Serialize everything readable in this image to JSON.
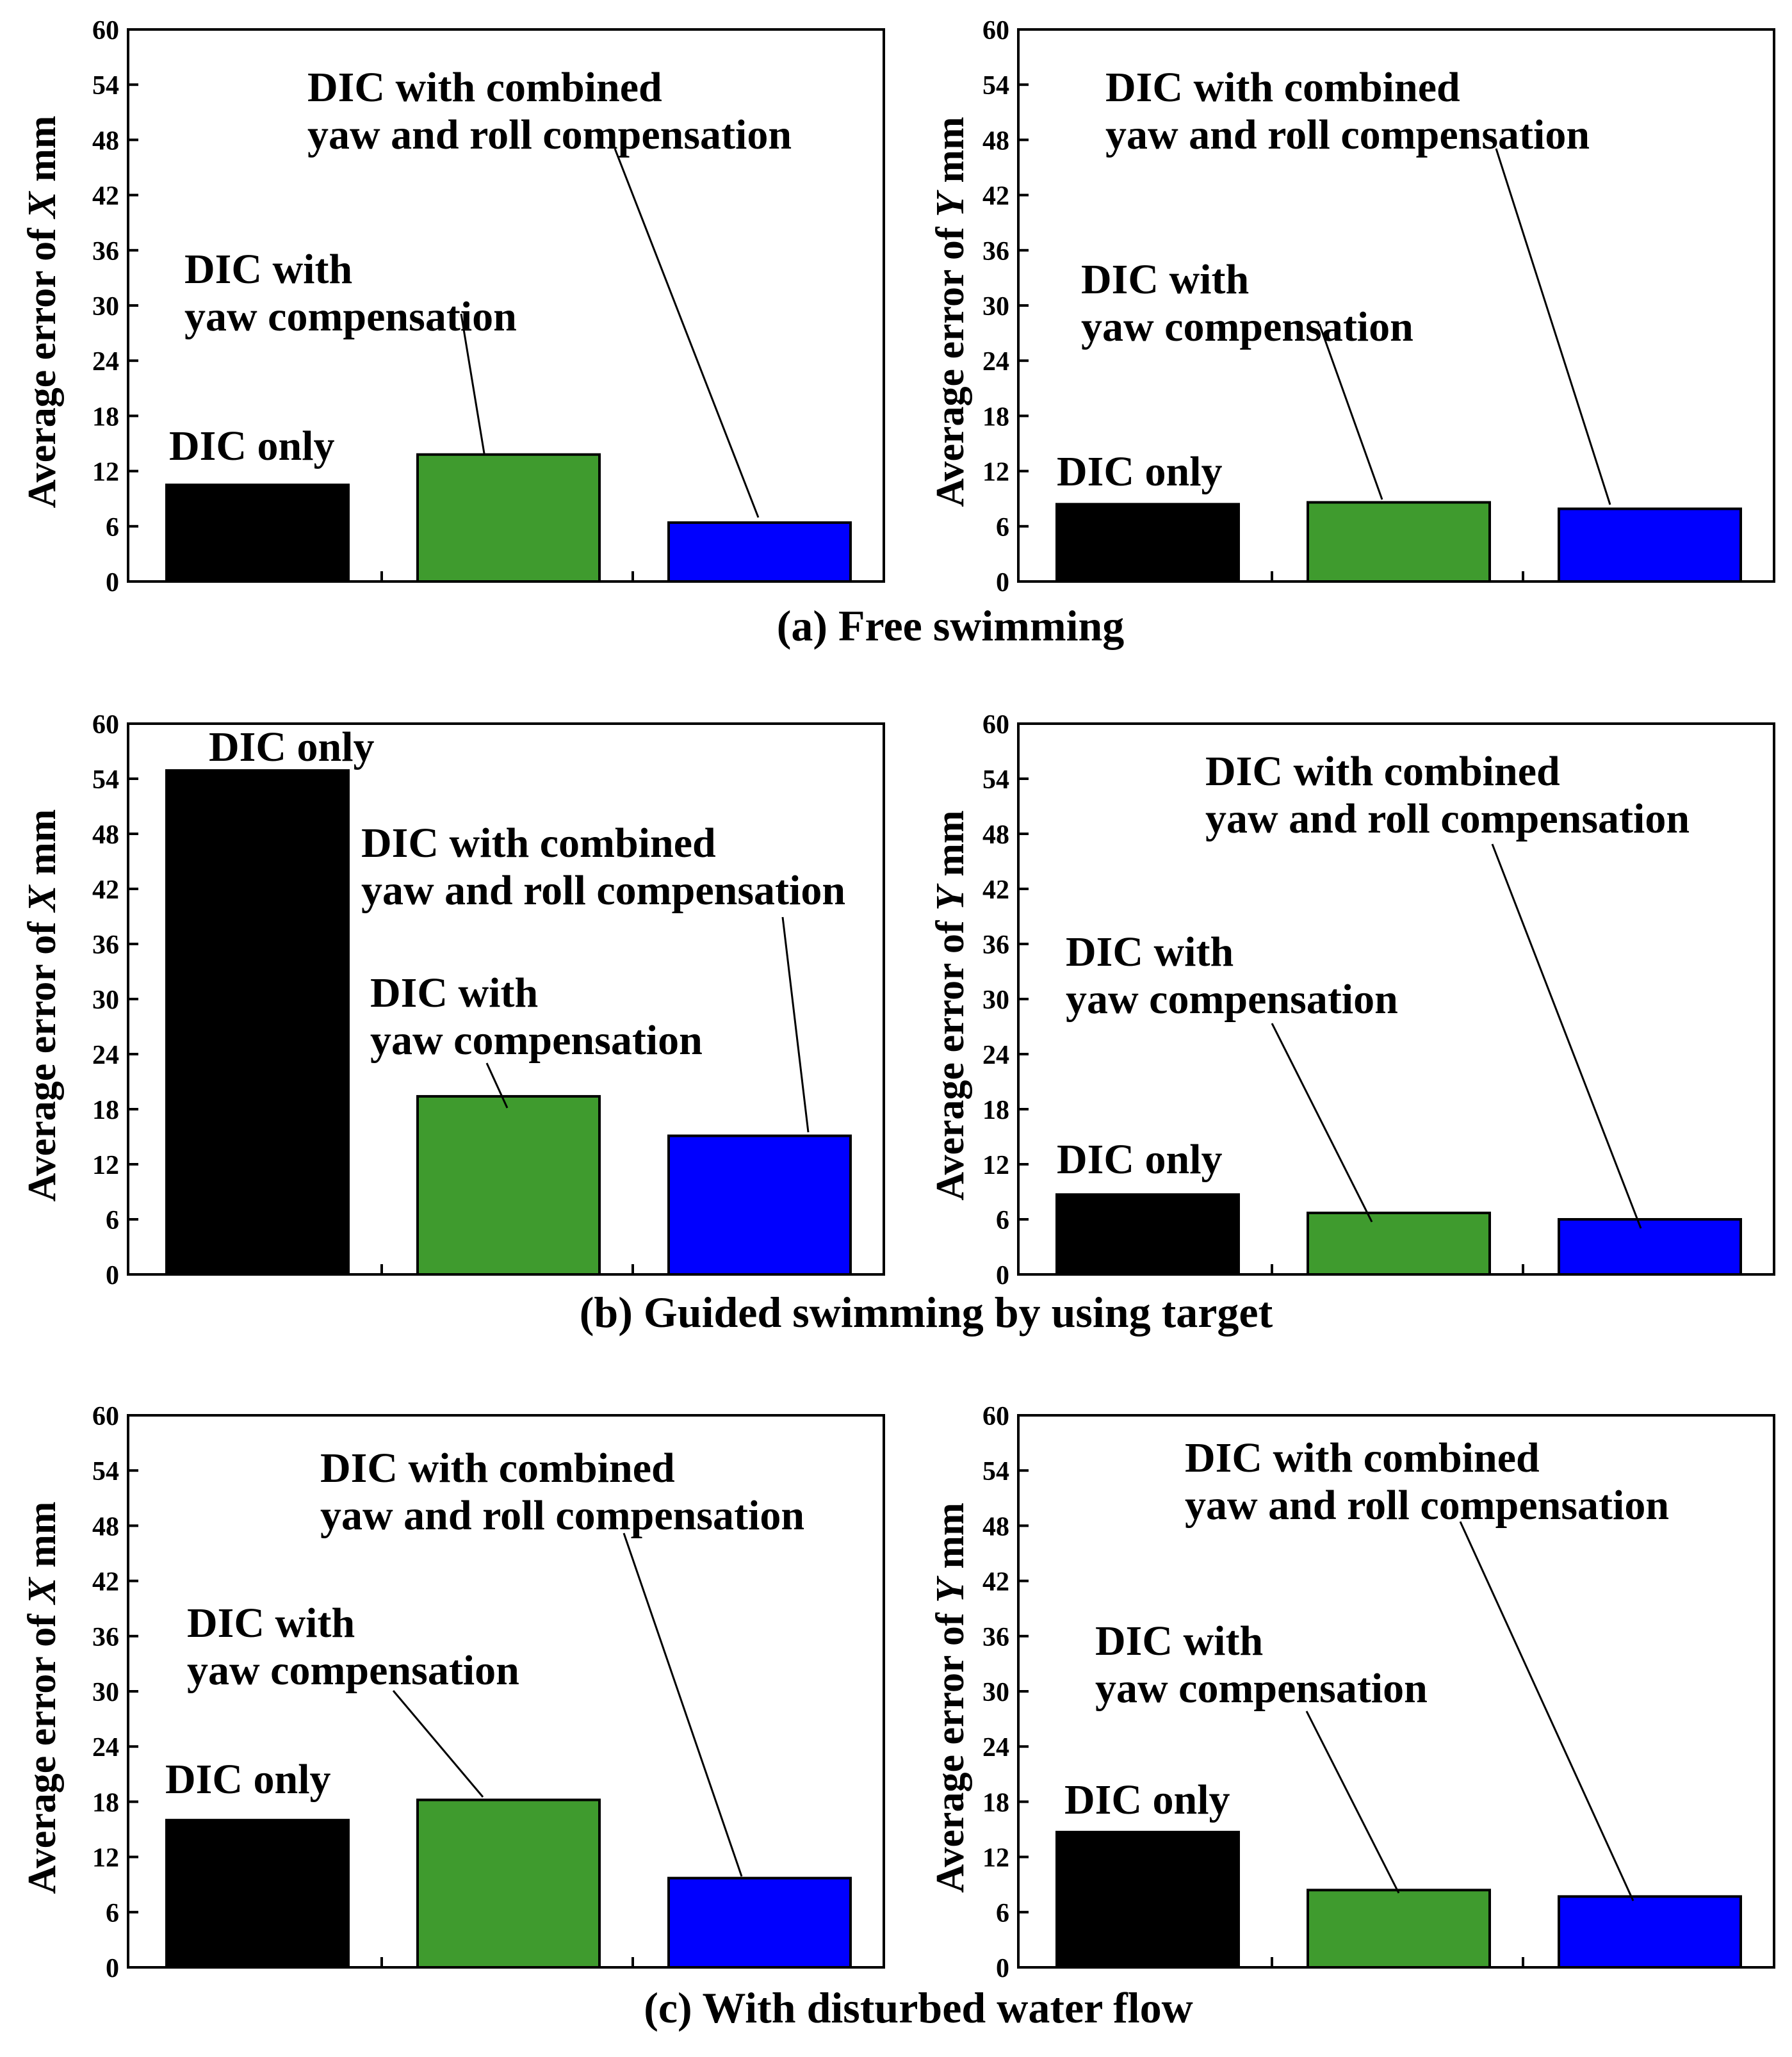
{
  "chart_data": [
    {
      "type": "bar",
      "panel": "a",
      "side": "left",
      "categories": [
        "DIC only",
        "DIC with yaw compensation",
        "DIC with combined yaw and roll compensation"
      ],
      "values": [
        10.5,
        13.8,
        6.4
      ],
      "colors": [
        "#000000",
        "#3f9b2e",
        "#0000ff"
      ],
      "ylabel_prefix": "Average error of ",
      "ylabel_var": "X",
      "ylabel_unit": "  mm",
      "ylim": [
        0,
        60
      ],
      "yticks": [
        "0",
        "6",
        "12",
        "18",
        "24",
        "30",
        "36",
        "42",
        "48",
        "54",
        "60"
      ],
      "annotations": [
        {
          "lines": [
            "DIC only"
          ]
        },
        {
          "lines": [
            "DIC with",
            "yaw compensation"
          ]
        },
        {
          "lines": [
            "DIC with combined",
            "yaw and roll compensation"
          ]
        }
      ]
    },
    {
      "type": "bar",
      "panel": "a",
      "side": "right",
      "categories": [
        "DIC only",
        "DIC with yaw compensation",
        "DIC with combined yaw and roll compensation"
      ],
      "values": [
        8.4,
        8.6,
        7.9
      ],
      "colors": [
        "#000000",
        "#3f9b2e",
        "#0000ff"
      ],
      "ylabel_prefix": "Average error of ",
      "ylabel_var": "Y",
      "ylabel_unit": "  mm",
      "ylim": [
        0,
        60
      ],
      "yticks": [
        "0",
        "6",
        "12",
        "18",
        "24",
        "30",
        "36",
        "42",
        "48",
        "54",
        "60"
      ],
      "annotations": [
        {
          "lines": [
            "DIC only"
          ]
        },
        {
          "lines": [
            "DIC with",
            "yaw compensation"
          ]
        },
        {
          "lines": [
            "DIC with combined",
            "yaw and roll compensation"
          ]
        }
      ]
    },
    {
      "type": "bar",
      "panel": "b",
      "side": "left",
      "categories": [
        "DIC only",
        "DIC with yaw compensation",
        "DIC with combined yaw and roll compensation"
      ],
      "values": [
        54.9,
        19.4,
        15.1
      ],
      "colors": [
        "#000000",
        "#3f9b2e",
        "#0000ff"
      ],
      "ylabel_prefix": "Average error of ",
      "ylabel_var": "X",
      "ylabel_unit": "  mm",
      "ylim": [
        0,
        60
      ],
      "yticks": [
        "0",
        "6",
        "12",
        "18",
        "24",
        "30",
        "36",
        "42",
        "48",
        "54",
        "60"
      ],
      "annotations": [
        {
          "lines": [
            "DIC only"
          ]
        },
        {
          "lines": [
            "DIC with",
            "yaw compensation"
          ]
        },
        {
          "lines": [
            "DIC with combined",
            "yaw and roll compensation"
          ]
        }
      ]
    },
    {
      "type": "bar",
      "panel": "b",
      "side": "right",
      "categories": [
        "DIC only",
        "DIC with yaw compensation",
        "DIC with combined yaw and roll compensation"
      ],
      "values": [
        8.7,
        6.7,
        6.0
      ],
      "colors": [
        "#000000",
        "#3f9b2e",
        "#0000ff"
      ],
      "ylabel_prefix": "Average error of ",
      "ylabel_var": "Y",
      "ylabel_unit": "  mm",
      "ylim": [
        0,
        60
      ],
      "yticks": [
        "0",
        "6",
        "12",
        "18",
        "24",
        "30",
        "36",
        "42",
        "48",
        "54",
        "60"
      ],
      "annotations": [
        {
          "lines": [
            "DIC only"
          ]
        },
        {
          "lines": [
            "DIC with",
            "yaw compensation"
          ]
        },
        {
          "lines": [
            "DIC with combined",
            "yaw and roll compensation"
          ]
        }
      ]
    },
    {
      "type": "bar",
      "panel": "c",
      "side": "left",
      "categories": [
        "DIC only",
        "DIC with yaw compensation",
        "DIC with combined yaw and roll compensation"
      ],
      "values": [
        16.0,
        18.2,
        9.7
      ],
      "colors": [
        "#000000",
        "#3f9b2e",
        "#0000ff"
      ],
      "ylabel_prefix": "Average error of ",
      "ylabel_var": "X",
      "ylabel_unit": "  mm",
      "ylim": [
        0,
        60
      ],
      "yticks": [
        "0",
        "6",
        "12",
        "18",
        "24",
        "30",
        "36",
        "42",
        "48",
        "54",
        "60"
      ],
      "annotations": [
        {
          "lines": [
            "DIC only"
          ]
        },
        {
          "lines": [
            "DIC with",
            "yaw compensation"
          ]
        },
        {
          "lines": [
            "DIC with combined",
            "yaw and roll compensation"
          ]
        }
      ]
    },
    {
      "type": "bar",
      "panel": "c",
      "side": "right",
      "categories": [
        "DIC only",
        "DIC with yaw compensation",
        "DIC with combined yaw and roll compensation"
      ],
      "values": [
        14.7,
        8.4,
        7.7
      ],
      "colors": [
        "#000000",
        "#3f9b2e",
        "#0000ff"
      ],
      "ylabel_prefix": "Average error of ",
      "ylabel_var": "Y",
      "ylabel_unit": "  mm",
      "ylim": [
        0,
        60
      ],
      "yticks": [
        "0",
        "6",
        "12",
        "18",
        "24",
        "30",
        "36",
        "42",
        "48",
        "54",
        "60"
      ],
      "annotations": [
        {
          "lines": [
            "DIC only"
          ]
        },
        {
          "lines": [
            "DIC with",
            "yaw compensation"
          ]
        },
        {
          "lines": [
            "DIC with combined",
            "yaw and roll compensation"
          ]
        }
      ]
    }
  ],
  "captions": {
    "a": "(a) Free swimming",
    "b": "(b) Guided swimming by using target",
    "c": "(c) With disturbed water flow"
  }
}
